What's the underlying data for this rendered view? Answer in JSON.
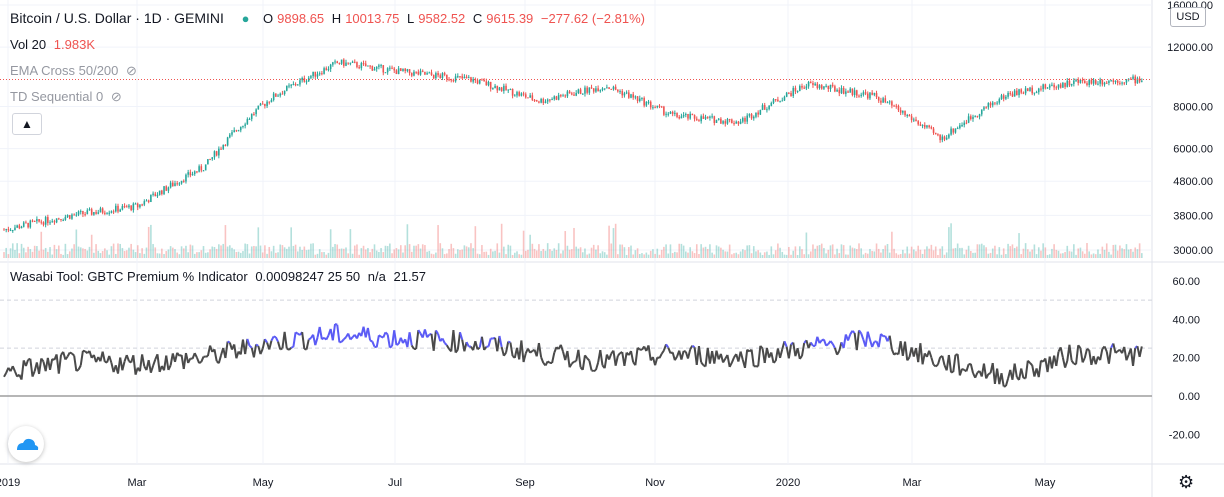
{
  "header": {
    "symbol": "Bitcoin / U.S. Dollar · 1D · GEMINI",
    "open_label": "O",
    "open": "9898.65",
    "high_label": "H",
    "high": "10013.75",
    "low_label": "L",
    "low": "9582.52",
    "close_label": "C",
    "close": "9615.39",
    "change": "−277.62 (−2.81%)"
  },
  "studies": {
    "volume_label": "Vol 20",
    "volume_value": "1.983K",
    "ema_label": "EMA Cross 50/200",
    "td_label": "TD Sequential 0"
  },
  "indicator": {
    "title": "Wasabi Tool: GBTC Premium % Indicator",
    "params": "0.00098247 25 50",
    "na": "n/a",
    "value": "21.57"
  },
  "price_axis": {
    "currency": "USD",
    "ticks": [
      "16000.00",
      "12000.00",
      "8000.00",
      "6000.00",
      "4800.00",
      "3800.00",
      "3000.00"
    ]
  },
  "indicator_axis": {
    "ticks": [
      "60.00",
      "40.00",
      "20.00",
      "0.00",
      "-20.00"
    ]
  },
  "time_axis": {
    "labels": [
      "2019",
      "Mar",
      "May",
      "Jul",
      "Sep",
      "Nov",
      "2020",
      "Mar",
      "May"
    ]
  },
  "colors": {
    "up": "#26a69a",
    "down": "#ef5350",
    "indicator_line": "#4a4a4a",
    "indicator_high": "#5b5bf5"
  },
  "chart_data": [
    {
      "type": "candlestick",
      "title": "Bitcoin / U.S. Dollar · 1D · GEMINI",
      "x": [
        "2019-01",
        "2019-02",
        "2019-03",
        "2019-04",
        "2019-05",
        "2019-06",
        "2019-07",
        "2019-08",
        "2019-09",
        "2019-10",
        "2019-11",
        "2019-12",
        "2020-01",
        "2020-02",
        "2020-03",
        "2020-04",
        "2020-05",
        "2020-06"
      ],
      "close": [
        3450,
        3800,
        4050,
        5300,
        8500,
        10800,
        10100,
        9600,
        8300,
        9200,
        7500,
        7200,
        9300,
        8600,
        6400,
        8700,
        9450,
        9615
      ],
      "ylim": [
        2900,
        16000
      ],
      "scale": "log",
      "last_close": 9615.39
    },
    {
      "type": "line",
      "title": "Wasabi Tool: GBTC Premium % Indicator",
      "x": [
        "2019-01",
        "2019-02",
        "2019-03",
        "2019-04",
        "2019-05",
        "2019-06",
        "2019-07",
        "2019-08",
        "2019-09",
        "2019-10",
        "2019-11",
        "2019-12",
        "2020-01",
        "2020-02",
        "2020-03",
        "2020-04",
        "2020-05",
        "2020-06"
      ],
      "y": [
        12,
        18,
        17,
        20,
        28,
        32,
        30,
        28,
        22,
        18,
        22,
        20,
        25,
        30,
        18,
        10,
        22,
        21.57
      ],
      "ylim": [
        -30,
        65
      ],
      "reference_lines": [
        0,
        25,
        50
      ]
    }
  ]
}
